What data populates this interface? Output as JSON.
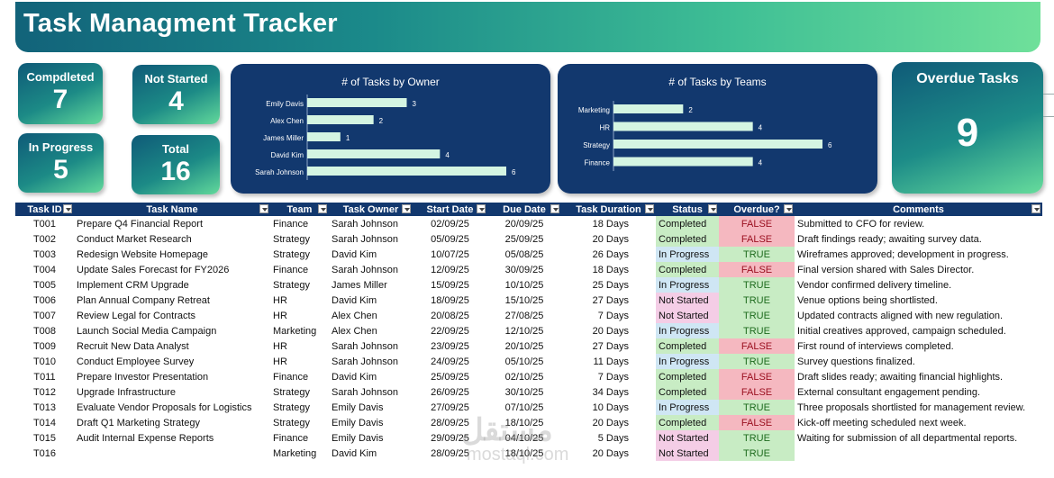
{
  "title": "Task Managment Tracker",
  "kpis": {
    "completed": {
      "label": "Compdleted",
      "value": "7"
    },
    "not_started": {
      "label": "Not Started",
      "value": "4"
    },
    "in_progress": {
      "label": "In Progress",
      "value": "5"
    },
    "total": {
      "label": "Total",
      "value": "16"
    },
    "overdue": {
      "label": "Overdue Tasks",
      "value": "9"
    }
  },
  "chart_data": [
    {
      "type": "bar",
      "orientation": "horizontal",
      "title": "# of Tasks by Owner",
      "categories": [
        "Emily Davis",
        "Alex Chen",
        "James Miller",
        "David Kim",
        "Sarah Johnson"
      ],
      "values": [
        3,
        2,
        1,
        4,
        6
      ],
      "xlim": [
        0,
        6
      ],
      "grid": false,
      "bar_color": "#d4f5e2"
    },
    {
      "type": "bar",
      "orientation": "horizontal",
      "title": "# of Tasks by Teams",
      "categories": [
        "Marketing",
        "HR",
        "Strategy",
        "Finance"
      ],
      "values": [
        2,
        4,
        6,
        4
      ],
      "xlim": [
        0,
        6
      ],
      "grid": false,
      "bar_color": "#d4f5e2"
    }
  ],
  "table": {
    "headers": [
      "Task ID",
      "Task Name",
      "Team",
      "Task Owner",
      "Start Date",
      "Due Date",
      "Task Duration",
      "Status",
      "Overdue?",
      "Comments"
    ],
    "rows": [
      [
        "T001",
        "Prepare Q4 Financial Report",
        "Finance",
        "Sarah Johnson",
        "02/09/25",
        "20/09/25",
        "18 Days",
        "Completed",
        "FALSE",
        "Submitted to CFO for review."
      ],
      [
        "T002",
        "Conduct Market Research",
        "Strategy",
        "Sarah Johnson",
        "05/09/25",
        "25/09/25",
        "20 Days",
        "Completed",
        "FALSE",
        "Draft findings ready; awaiting survey data."
      ],
      [
        "T003",
        "Redesign Website Homepage",
        "Strategy",
        "David Kim",
        "10/07/25",
        "05/08/25",
        "26 Days",
        "In Progress",
        "TRUE",
        "Wireframes approved; development in progress."
      ],
      [
        "T004",
        "Update Sales Forecast for FY2026",
        "Finance",
        "Sarah Johnson",
        "12/09/25",
        "30/09/25",
        "18 Days",
        "Completed",
        "FALSE",
        "Final version shared with Sales Director."
      ],
      [
        "T005",
        "Implement CRM Upgrade",
        "Strategy",
        "James Miller",
        "15/09/25",
        "10/10/25",
        "25 Days",
        "In Progress",
        "TRUE",
        "Vendor confirmed delivery timeline."
      ],
      [
        "T006",
        "Plan Annual Company Retreat",
        "HR",
        "David Kim",
        "18/09/25",
        "15/10/25",
        "27 Days",
        "Not Started",
        "TRUE",
        "Venue options being shortlisted."
      ],
      [
        "T007",
        "Review Legal for Contracts",
        "HR",
        "Alex Chen",
        "20/08/25",
        "27/08/25",
        "7 Days",
        "Not Started",
        "TRUE",
        "Updated contracts aligned with new regulation."
      ],
      [
        "T008",
        "Launch Social Media Campaign",
        "Marketing",
        "Alex Chen",
        "22/09/25",
        "12/10/25",
        "20 Days",
        "In Progress",
        "TRUE",
        "Initial creatives approved, campaign scheduled."
      ],
      [
        "T009",
        "Recruit New Data Analyst",
        "HR",
        "Sarah Johnson",
        "23/09/25",
        "20/10/25",
        "27 Days",
        "Completed",
        "FALSE",
        "First round of interviews completed."
      ],
      [
        "T010",
        "Conduct Employee Survey",
        "HR",
        "Sarah Johnson",
        "24/09/25",
        "05/10/25",
        "11 Days",
        "In Progress",
        "TRUE",
        "Survey questions finalized."
      ],
      [
        "T011",
        "Prepare Investor Presentation",
        "Finance",
        "David Kim",
        "25/09/25",
        "02/10/25",
        "7 Days",
        "Completed",
        "FALSE",
        "Draft slides ready; awaiting financial highlights."
      ],
      [
        "T012",
        "Upgrade Infrastructure",
        "Strategy",
        "Sarah Johnson",
        "26/09/25",
        "30/10/25",
        "34 Days",
        "Completed",
        "FALSE",
        "External consultant engagement pending."
      ],
      [
        "T013",
        "Evaluate Vendor Proposals for Logistics",
        "Strategy",
        "Emily Davis",
        "27/09/25",
        "07/10/25",
        "10 Days",
        "In Progress",
        "TRUE",
        "Three proposals shortlisted for management review."
      ],
      [
        "T014",
        "Draft Q1 Marketing Strategy",
        "Strategy",
        "Emily Davis",
        "28/09/25",
        "18/10/25",
        "20 Days",
        "Completed",
        "FALSE",
        "Kick-off meeting scheduled next week."
      ],
      [
        "T015",
        "Audit Internal Expense Reports",
        "Finance",
        "Emily Davis",
        "29/09/25",
        "04/10/25",
        "5 Days",
        "Not Started",
        "TRUE",
        "Waiting for submission of all departmental reports."
      ],
      [
        "T016",
        "",
        "Marketing",
        "David Kim",
        "28/09/25",
        "18/10/25",
        "20 Days",
        "Not Started",
        "TRUE",
        ""
      ]
    ]
  },
  "watermark": {
    "line1": "مستقل",
    "line2": "mostaql.com"
  }
}
